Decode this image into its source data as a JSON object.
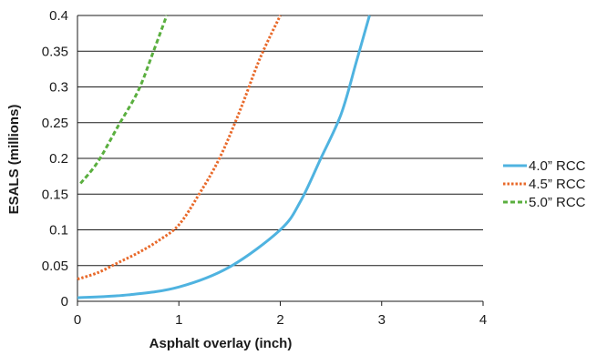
{
  "chart_data": {
    "type": "line",
    "title": "",
    "xlabel": "Asphalt overlay (inch)",
    "ylabel": "ESALS (millions)",
    "xlim": [
      0,
      4
    ],
    "ylim": [
      0,
      0.4
    ],
    "xticks": [
      "0",
      "1",
      "2",
      "3",
      "4"
    ],
    "yticks": [
      "0",
      "0.05",
      "0.1",
      "0.15",
      "0.2",
      "0.25",
      "0.3",
      "0.35",
      "0.4"
    ],
    "grid": "horizontal",
    "legend_position": "right",
    "series": [
      {
        "name": "4.0” RCC",
        "color": "#4fb3e0",
        "dash": "solid",
        "points": [
          [
            0,
            0.005
          ],
          [
            0.5,
            0.009
          ],
          [
            1.0,
            0.02
          ],
          [
            1.5,
            0.048
          ],
          [
            2.0,
            0.1
          ],
          [
            2.2,
            0.14
          ],
          [
            2.4,
            0.2
          ],
          [
            2.6,
            0.262
          ],
          [
            2.75,
            0.335
          ],
          [
            2.88,
            0.4
          ]
        ]
      },
      {
        "name": "4.5” RCC",
        "color": "#e8692a",
        "dash": "dotted",
        "points": [
          [
            0,
            0.031
          ],
          [
            0.2,
            0.04
          ],
          [
            0.4,
            0.054
          ],
          [
            0.6,
            0.068
          ],
          [
            0.8,
            0.085
          ],
          [
            1.0,
            0.107
          ],
          [
            1.2,
            0.15
          ],
          [
            1.4,
            0.2
          ],
          [
            1.6,
            0.266
          ],
          [
            1.8,
            0.34
          ],
          [
            2.0,
            0.4
          ]
        ]
      },
      {
        "name": "5.0” RCC",
        "color": "#5aaf3f",
        "dash": "dashed",
        "points": [
          [
            0.03,
            0.165
          ],
          [
            0.2,
            0.195
          ],
          [
            0.4,
            0.245
          ],
          [
            0.6,
            0.295
          ],
          [
            0.75,
            0.35
          ],
          [
            0.88,
            0.4
          ]
        ]
      }
    ]
  }
}
